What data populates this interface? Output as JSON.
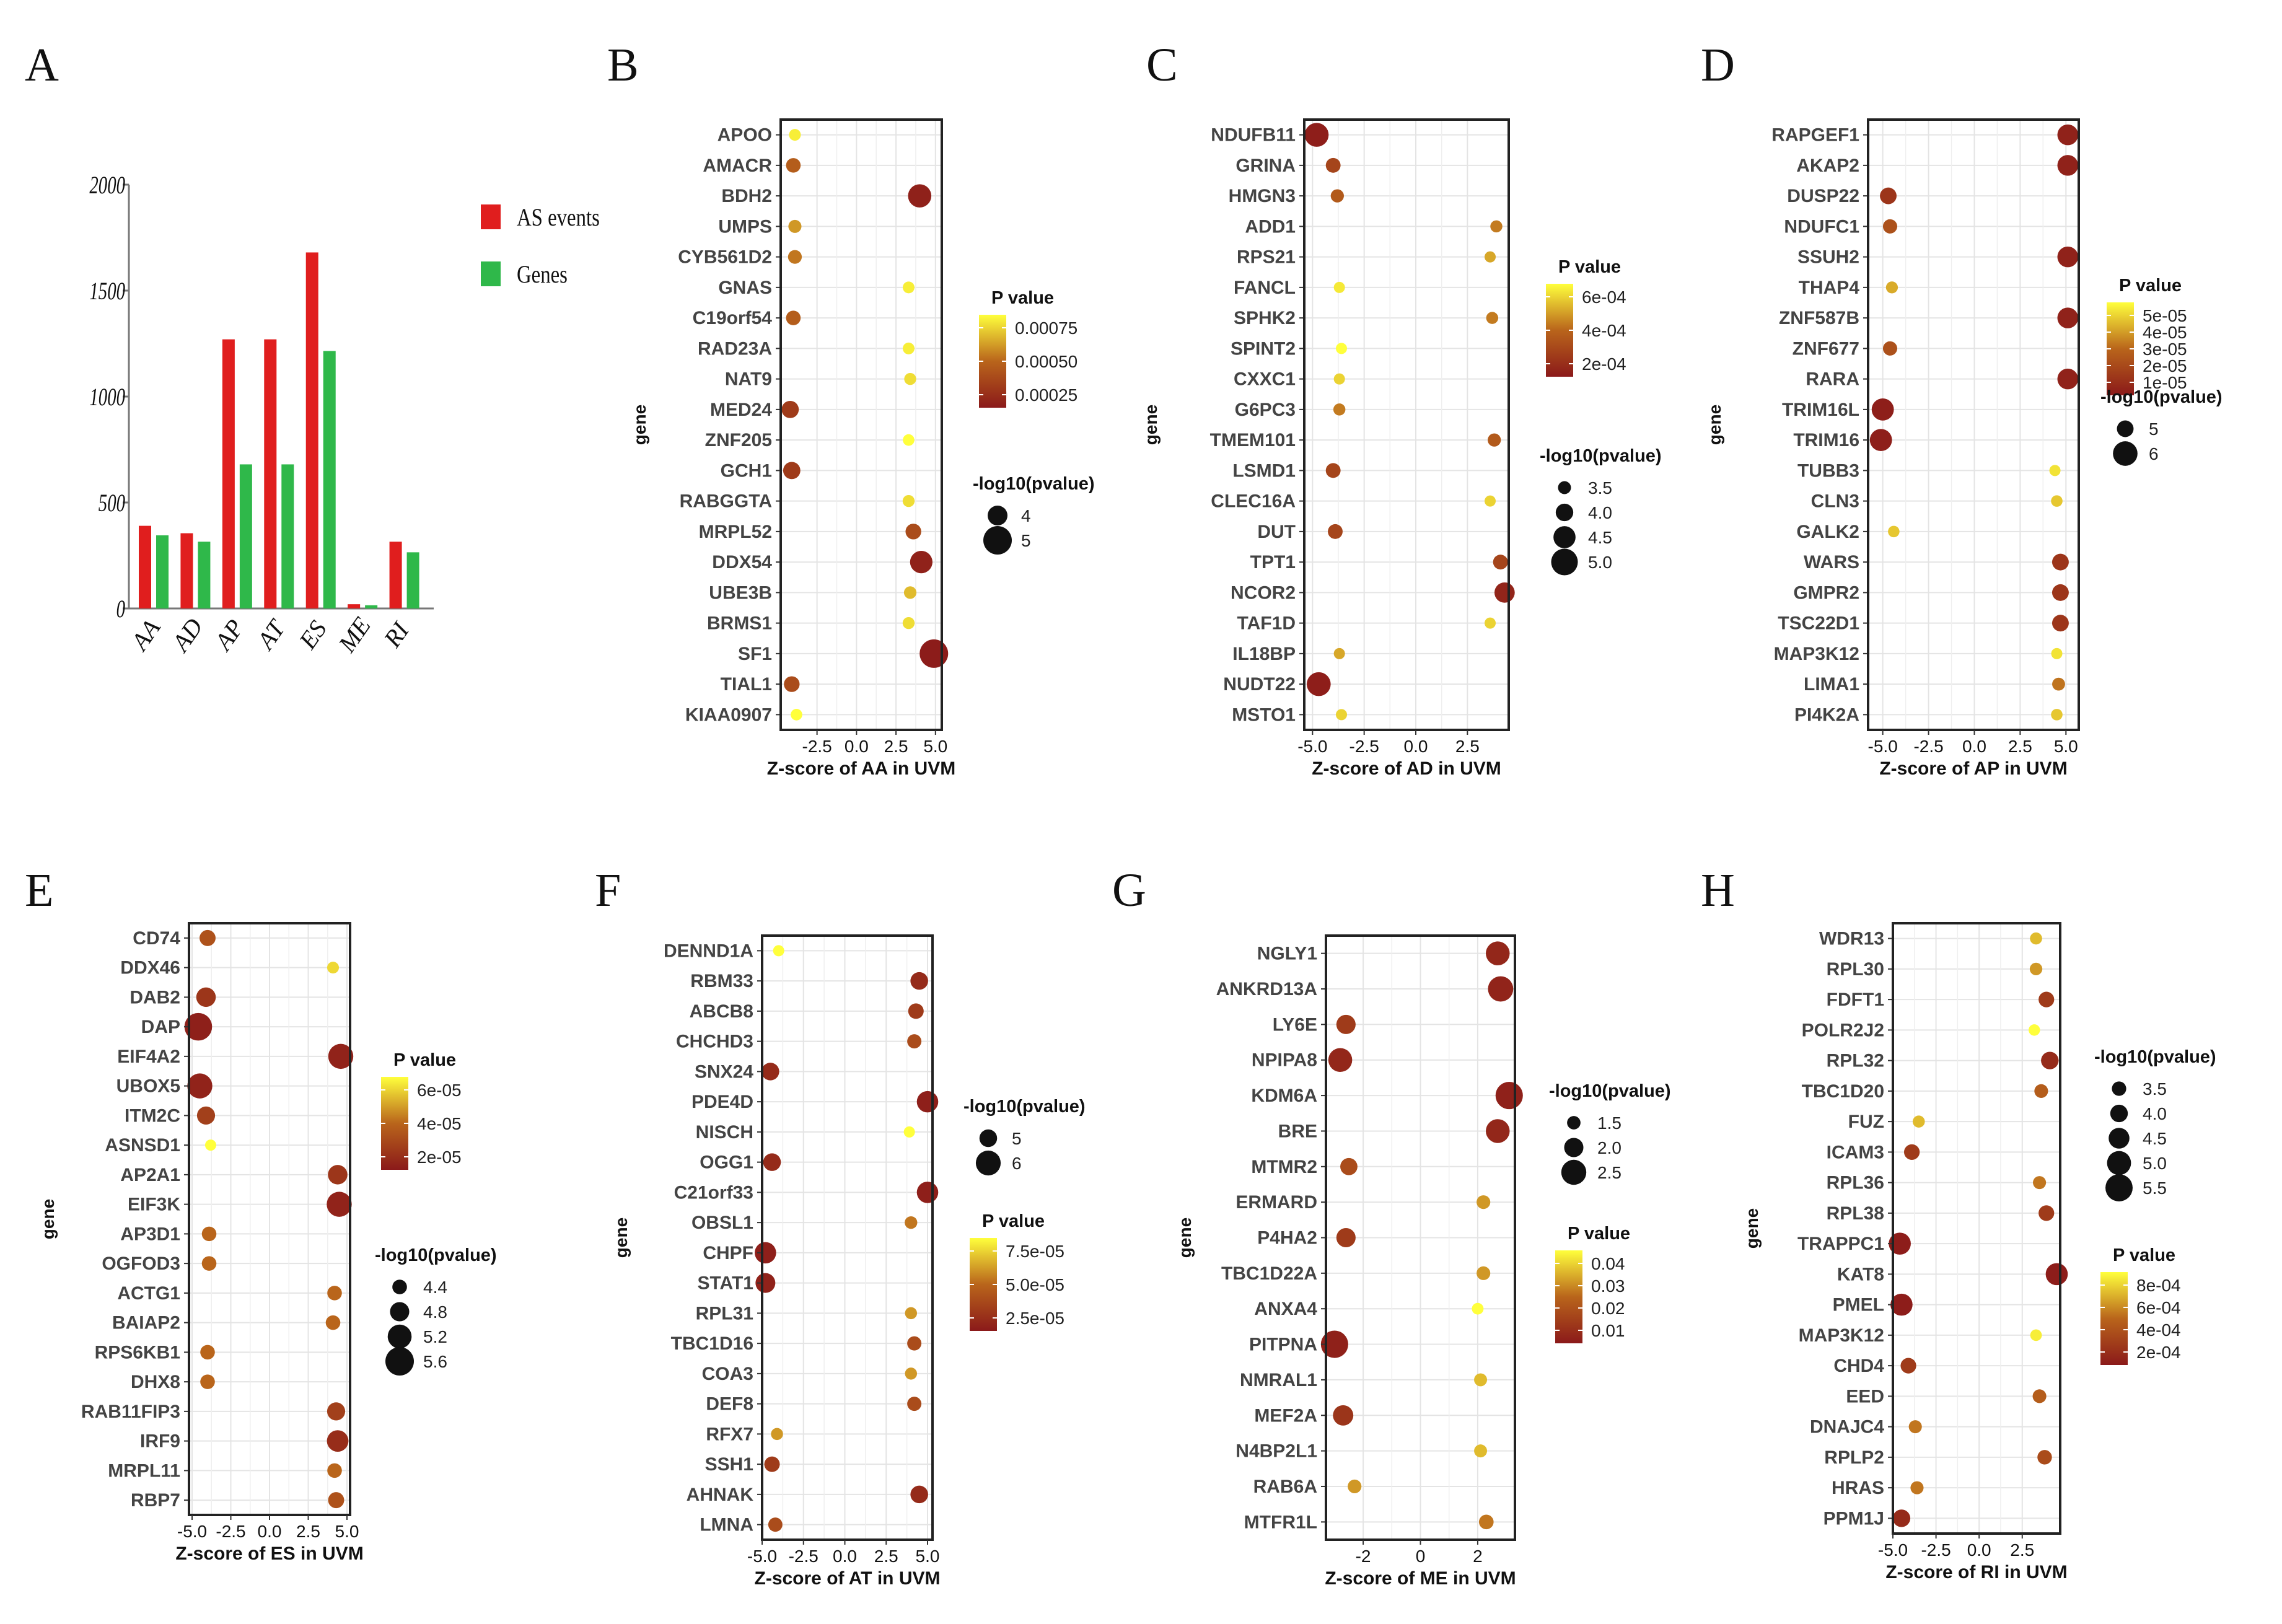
{
  "colors": {
    "low": "#8b1a1a",
    "mid": "#b9651b",
    "high": "#ffff3c",
    "as_events": "#e01e1e",
    "genes": "#2fb84a"
  },
  "chart_data": [
    {
      "type": "bar",
      "panel": "A",
      "categories": [
        "AA",
        "AD",
        "AP",
        "AT",
        "ES",
        "ME",
        "RI"
      ],
      "series": [
        {
          "name": "AS events",
          "values": [
            390,
            355,
            1270,
            1270,
            1680,
            20,
            315
          ]
        },
        {
          "name": "Genes",
          "values": [
            345,
            315,
            680,
            680,
            1215,
            15,
            265
          ]
        }
      ],
      "yticks": [
        "0",
        "500",
        "1000",
        "1500",
        "2000"
      ],
      "ylim": [
        0,
        2000
      ],
      "legend_position": "top-right"
    },
    {
      "type": "scatter",
      "panel": "B",
      "genes": [
        "APOO",
        "AMACR",
        "BDH2",
        "UMPS",
        "CYB561D2",
        "GNAS",
        "C19orf54",
        "RAD23A",
        "NAT9",
        "MED24",
        "ZNF205",
        "GCH1",
        "RABGGTA",
        "MRPL52",
        "DDX54",
        "UBE3B",
        "BRMS1",
        "SF1",
        "TIAL1",
        "KIAA0907"
      ],
      "z": [
        -3.9,
        -4.0,
        4.0,
        -3.9,
        -3.9,
        3.3,
        -4.0,
        3.3,
        3.4,
        -4.2,
        3.3,
        -4.1,
        3.3,
        3.6,
        4.1,
        3.4,
        3.3,
        4.9,
        -4.1,
        -3.8
      ],
      "p": [
        0.00085,
        0.0004,
        4e-05,
        0.0006,
        0.0005,
        0.00085,
        0.0004,
        0.00085,
        0.0008,
        0.0002,
        0.0009,
        0.0002,
        0.0008,
        0.0003,
        5e-05,
        0.0007,
        0.0008,
        1e-05,
        0.0003,
        0.0009
      ],
      "xlim": [
        -4.8,
        5.4
      ],
      "xticks": [
        {
          "v": -2.5,
          "label": "-2.5"
        },
        {
          "v": 0,
          "label": "0.0"
        },
        {
          "v": 2.5,
          "label": "2.5"
        },
        {
          "v": 5,
          "label": "5.0"
        }
      ],
      "xlabel": "Z-score of AA in UVM",
      "ylabel": "gene",
      "p_title": "P value",
      "p_labels": [
        "0.00075",
        "0.00050",
        "0.00025"
      ],
      "p_max": 0.0009,
      "size_title": "-log10(pvalue)",
      "size_labels": [
        "4",
        "5"
      ],
      "size_range": [
        3,
        5
      ]
    },
    {
      "type": "scatter",
      "panel": "C",
      "genes": [
        "NDUFB11",
        "GRINA",
        "HMGN3",
        "ADD1",
        "RPS21",
        "FANCL",
        "SPHK2",
        "SPINT2",
        "CXXC1",
        "G6PC3",
        "TMEM101",
        "LSMD1",
        "CLEC16A",
        "DUT",
        "TPT1",
        "NCOR2",
        "TAF1D",
        "IL18BP",
        "NUDT22",
        "MSTO1"
      ],
      "z": [
        -4.8,
        -4.0,
        -3.8,
        3.9,
        3.6,
        -3.7,
        3.7,
        -3.6,
        -3.7,
        -3.7,
        3.8,
        -4.0,
        3.6,
        -3.9,
        4.1,
        4.3,
        3.6,
        -3.7,
        -4.7,
        -3.6
      ],
      "p": [
        2e-05,
        0.0002,
        0.0003,
        0.0004,
        0.0005,
        0.00065,
        0.0004,
        0.0007,
        0.0006,
        0.0004,
        0.0003,
        0.0002,
        0.0006,
        0.0002,
        0.0002,
        5e-05,
        0.0006,
        0.0005,
        2e-05,
        0.0006
      ],
      "xlim": [
        -5.4,
        4.5
      ],
      "xticks": [
        {
          "v": -5,
          "label": "-5.0"
        },
        {
          "v": -2.5,
          "label": "-2.5"
        },
        {
          "v": 0,
          "label": "0.0"
        },
        {
          "v": 2.5,
          "label": "2.5"
        }
      ],
      "xlabel": "Z-score  of AD in UVM",
      "ylabel": "gene",
      "p_title": "P value",
      "p_labels": [
        "6e-04",
        "4e-04",
        "2e-04"
      ],
      "p_max": 0.0007,
      "size_title": "-log10(pvalue)",
      "size_labels": [
        "3.5",
        "4.0",
        "4.5",
        "5.0"
      ],
      "size_range": [
        3.3,
        5.2
      ]
    },
    {
      "type": "scatter",
      "panel": "D",
      "genes": [
        "RAPGEF1",
        "AKAP2",
        "DUSP22",
        "NDUFC1",
        "SSUH2",
        "THAP4",
        "ZNF587B",
        "ZNF677",
        "RARA",
        "TRIM16L",
        "TRIM16",
        "TUBB3",
        "CLN3",
        "GALK2",
        "WARS",
        "GMPR2",
        "TSC22D1",
        "MAP3K12",
        "LIMA1",
        "PI4K2A"
      ],
      "z": [
        5.1,
        5.1,
        -4.7,
        -4.6,
        5.1,
        -4.5,
        5.1,
        -4.6,
        5.1,
        -5.0,
        -5.1,
        4.4,
        4.5,
        -4.4,
        4.7,
        4.7,
        4.7,
        4.5,
        4.6,
        4.5
      ],
      "p": [
        3e-06,
        3e-06,
        1e-05,
        2e-05,
        3e-06,
        4e-05,
        3e-06,
        2e-05,
        3e-06,
        2e-06,
        2e-06,
        5e-05,
        4.5e-05,
        4.5e-05,
        1e-05,
        1e-05,
        1e-05,
        5e-05,
        3e-05,
        4.5e-05
      ],
      "xlim": [
        -5.8,
        5.7
      ],
      "xticks": [
        {
          "v": -5,
          "label": "-5.0"
        },
        {
          "v": -2.5,
          "label": "-2.5"
        },
        {
          "v": 0,
          "label": "0.0"
        },
        {
          "v": 2.5,
          "label": "2.5"
        },
        {
          "v": 5,
          "label": "5.0"
        }
      ],
      "xlabel": "Z-score of AP in UVM",
      "ylabel": "gene",
      "p_title": "P value",
      "p_labels": [
        "5e-05",
        "4e-05",
        "3e-05",
        "2e-05",
        "1e-05"
      ],
      "p_max": 5.5e-05,
      "size_title": "-log10(pvalue)",
      "size_labels": [
        "5",
        "6"
      ],
      "size_range": [
        4.3,
        6.5
      ]
    },
    {
      "type": "scatter",
      "panel": "E",
      "genes": [
        "CD74",
        "DDX46",
        "DAB2",
        "DAP",
        "EIF4A2",
        "UBOX5",
        "ITM2C",
        "ASNSD1",
        "AP2A1",
        "EIF3K",
        "AP3D1",
        "OGFOD3",
        "ACTG1",
        "BAIAP2",
        "RPS6KB1",
        "DHX8",
        "RAB11FIP3",
        "IRF9",
        "MRPL11",
        "RBP7"
      ],
      "z": [
        -4.0,
        4.1,
        -4.1,
        -4.6,
        4.6,
        -4.5,
        -4.1,
        -3.8,
        4.4,
        4.5,
        -3.9,
        -3.9,
        4.2,
        4.1,
        -4.0,
        -4.0,
        4.3,
        4.4,
        4.2,
        4.3
      ],
      "p": [
        3e-05,
        7e-05,
        1.5e-05,
        3e-06,
        5e-06,
        5e-06,
        2e-05,
        8e-05,
        1.5e-05,
        5e-06,
        4e-05,
        4e-05,
        4e-05,
        4e-05,
        4e-05,
        4e-05,
        2e-05,
        1e-05,
        4e-05,
        3e-05
      ],
      "xlim": [
        -5.2,
        5.2
      ],
      "xticks": [
        {
          "v": -5,
          "label": "-5.0"
        },
        {
          "v": -2.5,
          "label": "-2.5"
        },
        {
          "v": 0,
          "label": "0.0"
        },
        {
          "v": 2.5,
          "label": "2.5"
        },
        {
          "v": 5,
          "label": "5.0"
        }
      ],
      "xlabel": "Z-score of ES in UVM",
      "ylabel": "gene",
      "p_title": "P value",
      "p_labels": [
        "6e-05",
        "4e-05",
        "2e-05"
      ],
      "p_max": 8e-05,
      "size_title": "-log10(pvalue)",
      "size_labels": [
        "4.4",
        "4.8",
        "5.2",
        "5.6"
      ],
      "size_range": [
        4.1,
        5.6
      ]
    },
    {
      "type": "scatter",
      "panel": "F",
      "genes": [
        "DENND1A",
        "RBM33",
        "ABCB8",
        "CHCHD3",
        "SNX24",
        "PDE4D",
        "NISCH",
        "OGG1",
        "C21orf33",
        "OBSL1",
        "CHPF",
        "STAT1",
        "RPL31",
        "TBC1D16",
        "COA3",
        "DEF8",
        "RFX7",
        "SSH1",
        "AHNAK",
        "LMNA"
      ],
      "z": [
        -4.0,
        4.5,
        4.3,
        4.2,
        -4.5,
        5.0,
        3.9,
        -4.4,
        5.0,
        4.0,
        -4.8,
        -4.8,
        4.0,
        4.2,
        4.0,
        4.2,
        -4.1,
        -4.4,
        4.5,
        -4.2
      ],
      "p": [
        9e-05,
        1e-05,
        2e-05,
        3e-05,
        1e-05,
        3e-06,
        9e-05,
        1e-05,
        3e-06,
        5e-05,
        3e-06,
        5e-06,
        6e-05,
        3e-05,
        6e-05,
        3e-05,
        6e-05,
        2e-05,
        1e-05,
        3e-05
      ],
      "xlim": [
        -5.0,
        5.3
      ],
      "xticks": [
        {
          "v": -5,
          "label": "-5.0"
        },
        {
          "v": -2.5,
          "label": "-2.5"
        },
        {
          "v": 0,
          "label": "0.0"
        },
        {
          "v": 2.5,
          "label": "2.5"
        },
        {
          "v": 5,
          "label": "5.0"
        }
      ],
      "xlabel": "Z-score  of AT in UVM",
      "ylabel": "gene",
      "p_title": "P value",
      "p_labels": [
        "7.5e-05",
        "5.0e-05",
        "2.5e-05"
      ],
      "p_max": 9e-05,
      "size_title": "-log10(pvalue)",
      "size_labels": [
        "5",
        "6"
      ],
      "size_range": [
        4.1,
        6.5
      ]
    },
    {
      "type": "scatter",
      "panel": "G",
      "genes": [
        "NGLY1",
        "ANKRD13A",
        "LY6E",
        "NPIPA8",
        "KDM6A",
        "BRE",
        "MTMR2",
        "ERMARD",
        "P4HA2",
        "TBC1D22A",
        "ANXA4",
        "PITPNA",
        "NMRAL1",
        "MEF2A",
        "N4BP2L1",
        "RAB6A",
        "MTFR1L"
      ],
      "z": [
        2.7,
        2.8,
        -2.6,
        -2.8,
        3.1,
        2.7,
        -2.5,
        2.2,
        -2.6,
        2.2,
        2.0,
        -3.0,
        2.1,
        -2.7,
        2.1,
        -2.3,
        2.3
      ],
      "p": [
        0.004,
        0.003,
        0.01,
        0.004,
        0.002,
        0.004,
        0.015,
        0.03,
        0.01,
        0.03,
        0.045,
        0.002,
        0.035,
        0.008,
        0.035,
        0.03,
        0.025
      ],
      "xlim": [
        -3.3,
        3.3
      ],
      "xticks": [
        {
          "v": -2,
          "label": "-2"
        },
        {
          "v": 0,
          "label": "0"
        },
        {
          "v": 2,
          "label": "2"
        }
      ],
      "xlabel": "Z-score  of ME in UVM",
      "ylabel": "gene",
      "p_title": "P value",
      "p_labels": [
        "0.04",
        "0.03",
        "0.02",
        "0.01"
      ],
      "p_max": 0.045,
      "size_title": "-log10(pvalue)",
      "size_labels": [
        "1.5",
        "2.0",
        "2.5"
      ],
      "size_range": [
        1.3,
        2.8
      ]
    },
    {
      "type": "scatter",
      "panel": "H",
      "genes": [
        "WDR13",
        "RPL30",
        "FDFT1",
        "POLR2J2",
        "RPL32",
        "TBC1D20",
        "FUZ",
        "ICAM3",
        "RPL36",
        "RPL38",
        "TRAPPC1",
        "KAT8",
        "PMEL",
        "MAP3K12",
        "CHD4",
        "EED",
        "DNAJC4",
        "RPLP2",
        "HRAS",
        "PPM1J"
      ],
      "z": [
        3.3,
        3.3,
        3.9,
        3.2,
        4.1,
        3.6,
        -3.5,
        -3.9,
        3.5,
        3.9,
        -4.6,
        4.5,
        -4.5,
        3.3,
        -4.1,
        3.5,
        -3.7,
        3.8,
        -3.6,
        -4.5
      ],
      "p": [
        0.0007,
        0.0006,
        0.0002,
        0.0009,
        0.0001,
        0.0004,
        0.0007,
        0.0002,
        0.0005,
        0.0002,
        2e-05,
        2e-05,
        2e-05,
        0.00085,
        0.0002,
        0.0004,
        0.0005,
        0.0003,
        0.0005,
        0.0001
      ],
      "xlim": [
        -5.0,
        4.7
      ],
      "xticks": [
        {
          "v": -5,
          "label": "-5.0"
        },
        {
          "v": -2.5,
          "label": "-2.5"
        },
        {
          "v": 0,
          "label": "0.0"
        },
        {
          "v": 2.5,
          "label": "2.5"
        }
      ],
      "xlabel": "Z-score  of RI in UVM",
      "ylabel": "gene",
      "p_title": "P value",
      "p_labels": [
        "8e-04",
        "6e-04",
        "4e-04",
        "2e-04"
      ],
      "p_max": 0.0009,
      "size_title": "-log10(pvalue)",
      "size_labels": [
        "3.5",
        "4.0",
        "4.5",
        "5.0",
        "5.5"
      ],
      "size_range": [
        3.0,
        5.7
      ]
    }
  ]
}
